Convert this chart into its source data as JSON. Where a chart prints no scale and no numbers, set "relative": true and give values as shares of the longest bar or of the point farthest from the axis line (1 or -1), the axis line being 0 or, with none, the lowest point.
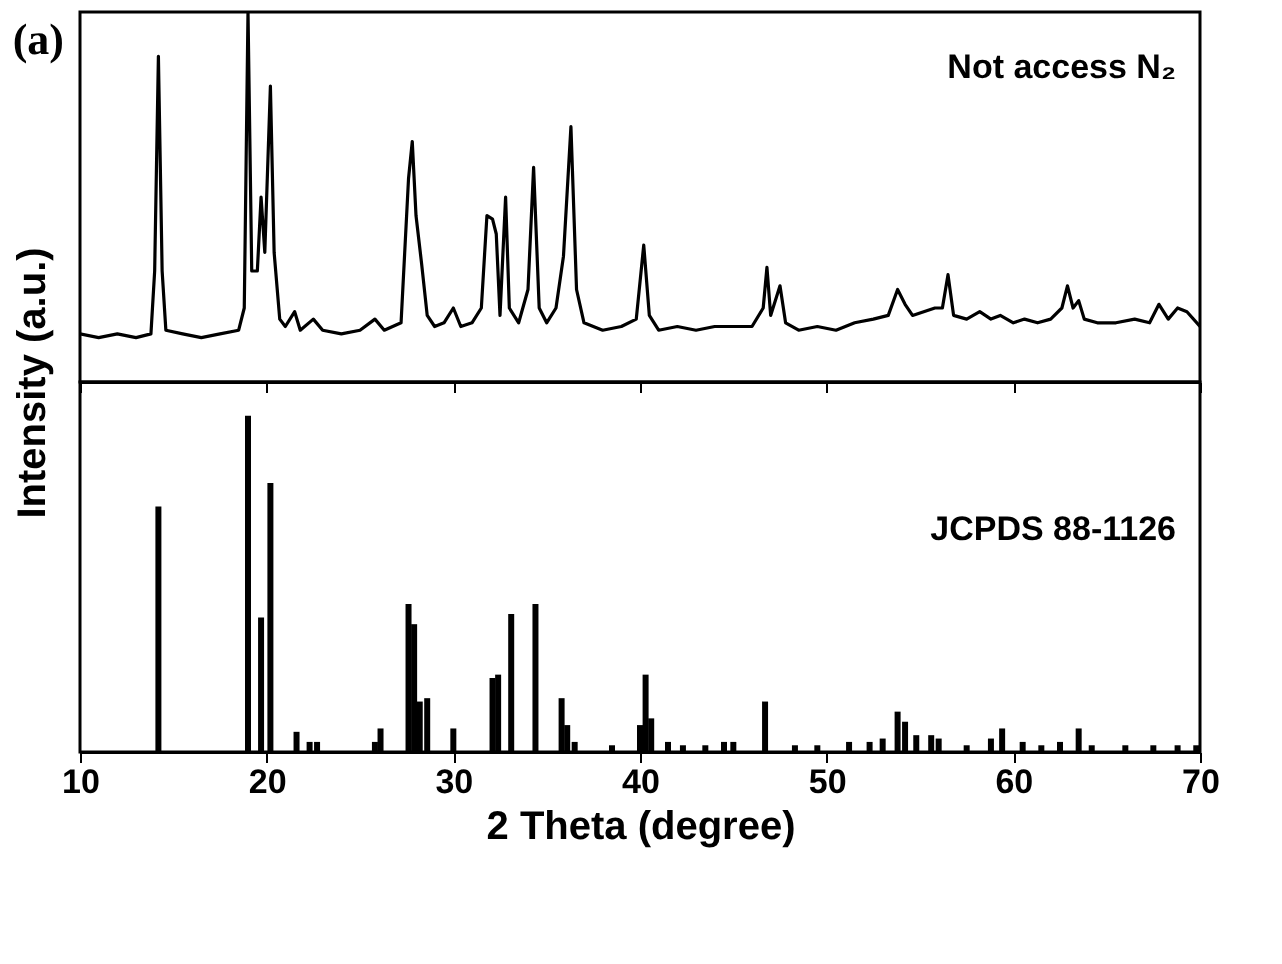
{
  "chart_data": [
    {
      "type": "line",
      "relative": true,
      "xlim": [
        10,
        70
      ],
      "xticks": [
        10,
        20,
        30,
        40,
        50,
        60,
        70
      ],
      "tick_labels": false,
      "annotations": [
        "(a)",
        "Not access N₂"
      ],
      "series": [
        {
          "color": "#000000",
          "x": [
            10,
            11,
            12,
            13,
            13.8,
            14.0,
            14.2,
            14.4,
            14.6,
            15.5,
            16.5,
            17.5,
            18.5,
            18.8,
            19.0,
            19.2,
            19.5,
            19.7,
            19.9,
            20.2,
            20.4,
            20.7,
            21.0,
            21.5,
            21.8,
            22.5,
            23,
            24,
            25,
            25.8,
            26.3,
            27.2,
            27.6,
            27.8,
            28.0,
            28.3,
            28.6,
            29.0,
            29.5,
            30.0,
            30.4,
            31.0,
            31.5,
            31.8,
            32.1,
            32.3,
            32.5,
            32.8,
            33.0,
            33.5,
            34.0,
            34.3,
            34.6,
            35.0,
            35.5,
            35.9,
            36.3,
            36.6,
            37.0,
            38,
            39,
            39.8,
            40.2,
            40.5,
            41,
            42,
            43,
            44,
            45,
            46,
            46.6,
            46.8,
            47.0,
            47.5,
            47.8,
            48.5,
            49.5,
            50.5,
            51.5,
            52.5,
            53.3,
            53.8,
            54.2,
            54.6,
            55.2,
            55.8,
            56.2,
            56.5,
            56.8,
            57.5,
            58.2,
            58.8,
            59.3,
            60,
            60.6,
            61.3,
            62.0,
            62.6,
            62.9,
            63.2,
            63.5,
            63.8,
            64.5,
            65.5,
            66.5,
            67.3,
            67.8,
            68.3,
            68.8,
            69.3,
            70
          ],
          "values": [
            0.13,
            0.12,
            0.13,
            0.12,
            0.13,
            0.3,
            0.88,
            0.3,
            0.14,
            0.13,
            0.12,
            0.13,
            0.14,
            0.2,
            1.0,
            0.3,
            0.3,
            0.5,
            0.35,
            0.8,
            0.35,
            0.17,
            0.15,
            0.19,
            0.14,
            0.17,
            0.14,
            0.13,
            0.14,
            0.17,
            0.14,
            0.16,
            0.55,
            0.65,
            0.45,
            0.32,
            0.18,
            0.15,
            0.16,
            0.2,
            0.15,
            0.16,
            0.2,
            0.45,
            0.44,
            0.4,
            0.18,
            0.5,
            0.2,
            0.16,
            0.25,
            0.58,
            0.2,
            0.16,
            0.2,
            0.34,
            0.69,
            0.25,
            0.16,
            0.14,
            0.15,
            0.17,
            0.37,
            0.18,
            0.14,
            0.15,
            0.14,
            0.15,
            0.15,
            0.15,
            0.2,
            0.31,
            0.18,
            0.26,
            0.16,
            0.14,
            0.15,
            0.14,
            0.16,
            0.17,
            0.18,
            0.25,
            0.21,
            0.18,
            0.19,
            0.2,
            0.2,
            0.29,
            0.18,
            0.17,
            0.19,
            0.17,
            0.18,
            0.16,
            0.17,
            0.16,
            0.17,
            0.2,
            0.26,
            0.2,
            0.22,
            0.17,
            0.16,
            0.16,
            0.17,
            0.16,
            0.21,
            0.17,
            0.2,
            0.19,
            0.15
          ]
        }
      ]
    },
    {
      "type": "bar",
      "relative": true,
      "xlim": [
        10,
        70
      ],
      "xticks": [
        10,
        20,
        30,
        40,
        50,
        60,
        70
      ],
      "tick_labels": "x",
      "xlabel": "2 Theta (degree)",
      "ylabel": "Intensity (a.u.)",
      "annotations": [
        "JCPDS 88-1126"
      ],
      "series": [
        {
          "color": "#000000",
          "x": [
            14.2,
            19.0,
            19.7,
            20.2,
            21.6,
            22.3,
            22.7,
            25.8,
            26.1,
            27.6,
            27.9,
            28.2,
            28.6,
            30.0,
            32.1,
            32.4,
            33.1,
            34.4,
            35.8,
            36.1,
            36.5,
            38.5,
            40.0,
            40.3,
            40.6,
            41.5,
            42.3,
            43.5,
            44.5,
            45.0,
            46.7,
            48.3,
            49.5,
            51.2,
            52.3,
            53.0,
            53.8,
            54.2,
            54.8,
            55.6,
            56.0,
            57.5,
            58.8,
            59.4,
            60.5,
            61.5,
            62.5,
            63.5,
            64.2,
            66.0,
            67.5,
            68.8,
            69.8
          ],
          "values": [
            0.73,
            1.0,
            0.4,
            0.8,
            0.06,
            0.03,
            0.03,
            0.03,
            0.07,
            0.44,
            0.38,
            0.15,
            0.16,
            0.07,
            0.22,
            0.23,
            0.41,
            0.44,
            0.16,
            0.08,
            0.03,
            0.02,
            0.08,
            0.23,
            0.1,
            0.03,
            0.02,
            0.02,
            0.03,
            0.03,
            0.15,
            0.02,
            0.02,
            0.03,
            0.03,
            0.04,
            0.12,
            0.09,
            0.05,
            0.05,
            0.04,
            0.02,
            0.04,
            0.07,
            0.03,
            0.02,
            0.03,
            0.07,
            0.02,
            0.02,
            0.02,
            0.02,
            0.02
          ]
        }
      ]
    }
  ]
}
